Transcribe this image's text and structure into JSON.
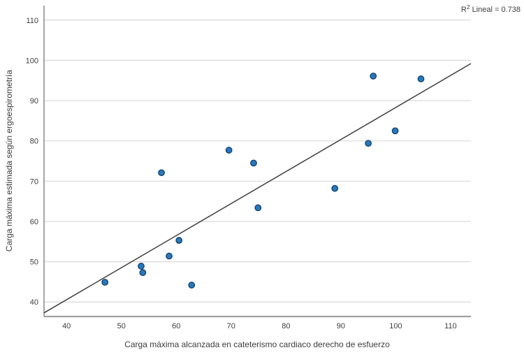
{
  "chart_data": {
    "type": "scatter",
    "title": "",
    "xlabel": "Carga máxima alcanzada en cateterismo cardiaco derecho de esfuerzo",
    "ylabel": "Carga máxima estimada según ergoespirometría",
    "annotation": {
      "base": "R",
      "sup": "2",
      "rest": "Lineal = 0.738"
    },
    "r_squared": 0.738,
    "xlim": [
      35.9,
      113.7
    ],
    "ylim": [
      36.4,
      113.6
    ],
    "xticks": [
      40,
      50,
      60,
      70,
      80,
      90,
      100,
      110
    ],
    "yticks": [
      40,
      50,
      60,
      70,
      80,
      90,
      100,
      110
    ],
    "grid": "horizontal-only",
    "legend": "none",
    "points": [
      [
        47.0,
        44.9
      ],
      [
        53.6,
        48.9
      ],
      [
        53.9,
        47.3
      ],
      [
        58.7,
        51.4
      ],
      [
        60.5,
        55.3
      ],
      [
        57.3,
        72.1
      ],
      [
        62.8,
        44.2
      ],
      [
        69.6,
        77.7
      ],
      [
        74.1,
        74.5
      ],
      [
        74.9,
        63.4
      ],
      [
        88.9,
        68.2
      ],
      [
        95.0,
        79.4
      ],
      [
        95.9,
        96.1
      ],
      [
        99.9,
        82.5
      ],
      [
        104.6,
        95.4
      ]
    ],
    "trendline": {
      "type": "linear",
      "x1": 35.9,
      "y1": 37.3,
      "x2": 113.7,
      "y2": 99.2,
      "slope": 0.8,
      "intercept": 8.7
    },
    "colors": {
      "point_fill": "#2878BE",
      "point_stroke": "#16456F",
      "trend_line": "#3f3f3f",
      "gridline": "#d9d9d9",
      "axis_x": "#a0a0a0",
      "axis_y": "#6b6b6b",
      "text": "#3d3d3d"
    }
  }
}
